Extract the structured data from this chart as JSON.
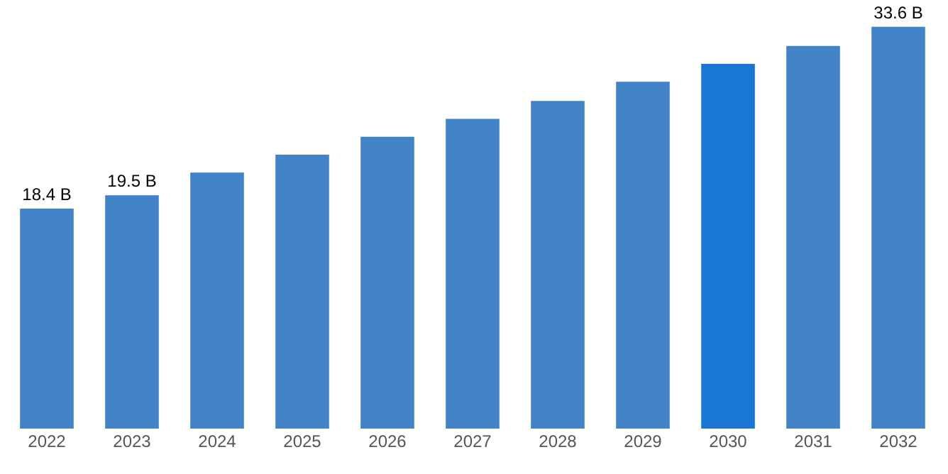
{
  "chart_data": {
    "type": "bar",
    "categories": [
      "2022",
      "2023",
      "2024",
      "2025",
      "2026",
      "2027",
      "2028",
      "2029",
      "2030",
      "2031",
      "2032"
    ],
    "values": [
      18.4,
      19.5,
      21.4,
      22.9,
      24.4,
      25.9,
      27.4,
      29.0,
      30.5,
      32.0,
      33.6
    ],
    "colors": [
      "#4282c6",
      "#4282c6",
      "#4282c6",
      "#4282c6",
      "#4282c6",
      "#4282c6",
      "#4282c6",
      "#4282c6",
      "#1976d2",
      "#4282c6",
      "#4282c6"
    ],
    "value_labels": [
      "18.4 B",
      "19.5 B",
      null,
      null,
      null,
      null,
      null,
      null,
      null,
      null,
      "33.6 B"
    ],
    "ylim": [
      0,
      33.7
    ],
    "grid": false,
    "legend": false,
    "tick_labels": "x"
  }
}
